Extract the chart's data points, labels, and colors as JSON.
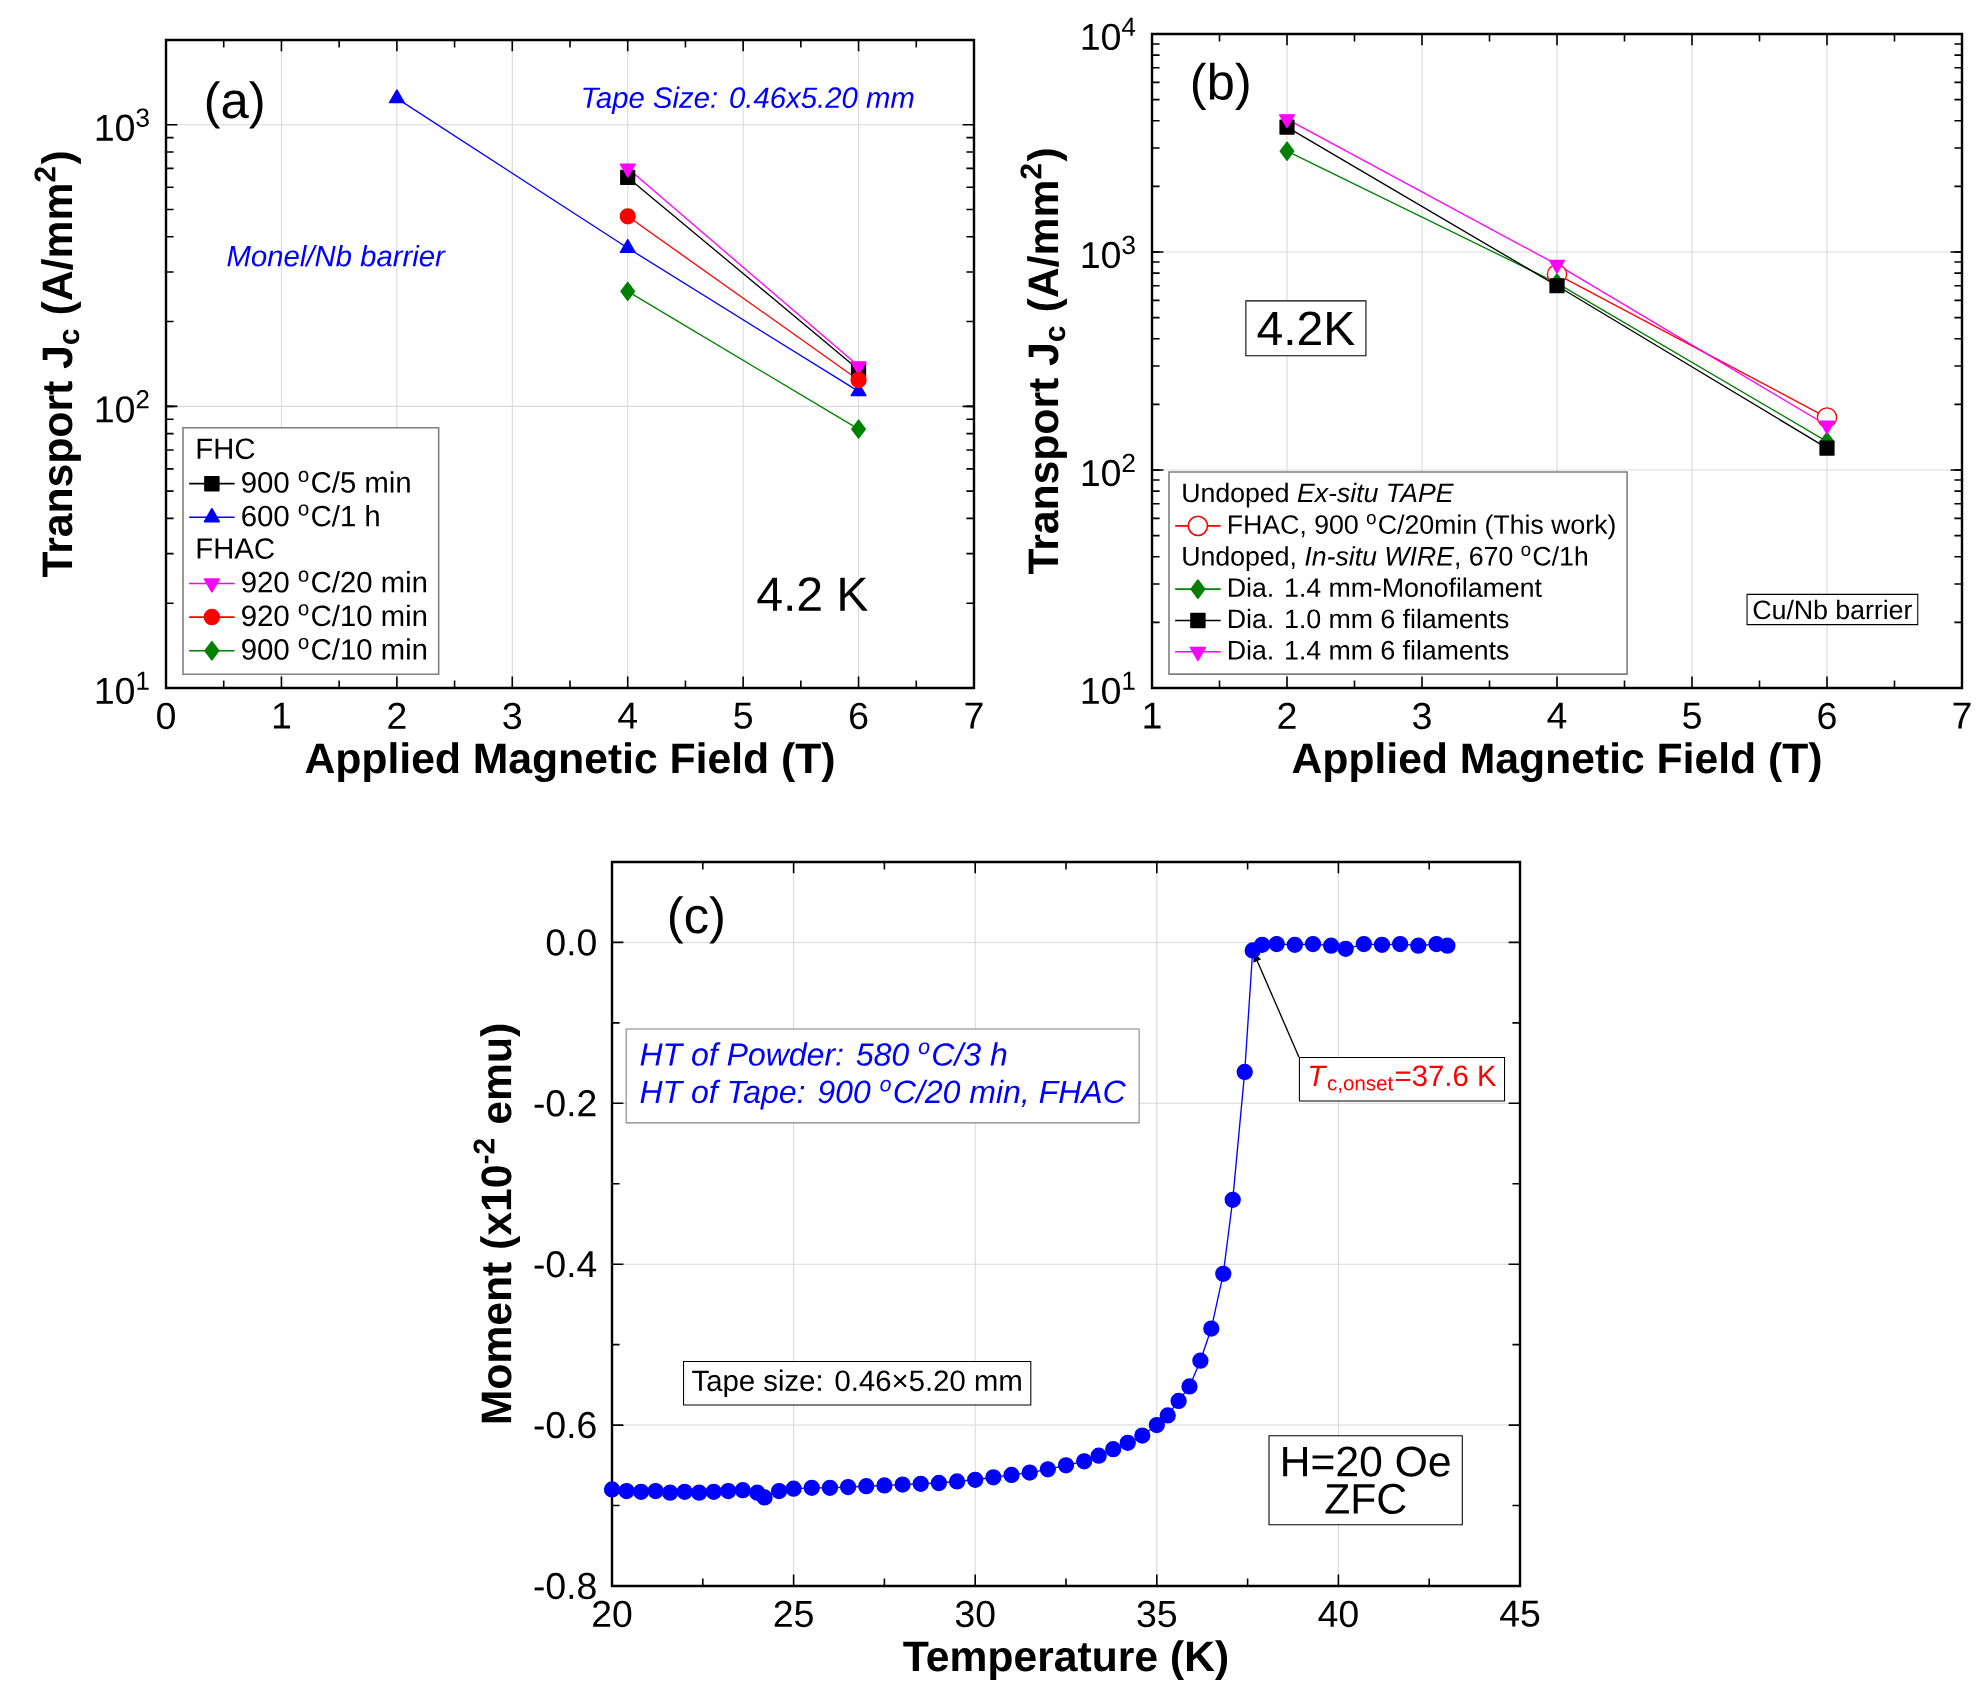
{
  "chart_data": [
    {
      "type": "line",
      "xlabel": "Applied Magnetic Field (T)",
      "ylabel": "Transport J$_{c}$ (A/mm$^{2}$)",
      "log": "y",
      "xlim": [
        0,
        7
      ],
      "ylim": [
        10,
        2000
      ],
      "xticks": [
        0,
        1,
        2,
        3,
        4,
        5,
        6,
        7
      ],
      "yticks": [
        {
          "value": 10,
          "label": "10$^{1}$"
        },
        {
          "value": 100,
          "label": "10$^{2}$"
        },
        {
          "value": 1000,
          "label": "10$^{3}$"
        }
      ],
      "grid": true,
      "legend": "bottom left",
      "annotations": [
        "(a)",
        "Tape Size: 0.46x5.20 mm",
        "Monel/Nb barrier",
        "4.2 K",
        "FHC",
        "FHAC"
      ],
      "series": [
        {
          "name": "900 $^{o}$C/5 min",
          "color": "#000000",
          "marker": "square",
          "x": [
            4,
            6
          ],
          "values": [
            650,
            135
          ]
        },
        {
          "name": "600 $^{o}$C/1 h",
          "color": "#0000ff",
          "marker": "triangle",
          "x": [
            2,
            4,
            6
          ],
          "values": [
            1240,
            365,
            113
          ]
        },
        {
          "name": "920 $^{o}$C/20 min",
          "color": "#ff00ff",
          "marker": "triangle-down",
          "x": [
            4,
            6
          ],
          "values": [
            700,
            139
          ]
        },
        {
          "name": "920 $^{o}$C/10 min",
          "color": "#ff0000",
          "marker": "circle",
          "x": [
            4,
            6
          ],
          "values": [
            473,
            124
          ]
        },
        {
          "name": "900 $^{o}$C/10 min",
          "color": "#008000",
          "marker": "diamond",
          "x": [
            4,
            6
          ],
          "values": [
            256,
            83
          ]
        }
      ]
    },
    {
      "type": "line",
      "xlabel": "Applied Magnetic Field (T)",
      "ylabel": "Transport J$_{c}$ (A/mm$^{2}$)",
      "log": "y",
      "xlim": [
        1,
        7
      ],
      "ylim": [
        10,
        10000
      ],
      "xticks": [
        1,
        2,
        3,
        4,
        5,
        6,
        7
      ],
      "yticks": [
        {
          "value": 10,
          "label": "10$^{1}$"
        },
        {
          "value": 100,
          "label": "10$^{2}$"
        },
        {
          "value": 1000,
          "label": "10$^{3}$"
        },
        {
          "value": 10000,
          "label": "10$^{4}$"
        }
      ],
      "grid": true,
      "legend": "bottom left",
      "annotations": [
        "(b)",
        "4.2K",
        "Cu/Nb barrier",
        "Undoped *Ex-situ TAPE*",
        "Undoped, *In-situ WIRE*, 670 $^{o}$C/1h"
      ],
      "series": [
        {
          "name": "FHAC, 900 $^{o}$C/20min (This work)",
          "color": "#ff0000",
          "marker": "open circle",
          "x": [
            4,
            6
          ],
          "values": [
            790,
            174
          ]
        },
        {
          "name": "Dia. 1.4 mm-Monofilament",
          "color": "#008000",
          "marker": "diamond",
          "x": [
            2,
            4,
            6
          ],
          "values": [
            2900,
            720,
            135
          ]
        },
        {
          "name": "Dia. 1.0 mm 6 filaments",
          "color": "#000000",
          "marker": "square",
          "x": [
            2,
            4,
            6
          ],
          "values": [
            3740,
            700,
            126
          ]
        },
        {
          "name": "Dia. 1.4 mm 6 filaments",
          "color": "#ff00ff",
          "marker": "triangle-down",
          "x": [
            2,
            4,
            6
          ],
          "values": [
            4070,
            875,
            160
          ]
        }
      ]
    },
    {
      "type": "line",
      "xlabel": "Temperature (K)",
      "ylabel": "Moment (x10$^{-2}$ emu)",
      "xlim": [
        20,
        45
      ],
      "ylim": [
        -0.8,
        0.1
      ],
      "xticks": [
        20,
        25,
        30,
        35,
        40,
        45
      ],
      "yticks": [
        -0.8,
        -0.6,
        -0.4,
        -0.2,
        {
          "value": 0,
          "label": "0.0"
        }
      ],
      "grid": true,
      "annotations": [
        "(c)",
        "HT of Powder: 580 $^{o}$C/3 h",
        "HT of Tape: 900 $^{o}$C/20 min, FHAC",
        {
          "text": "*T*$_{c,onset}$=37.6 K",
          "x": 37.64,
          "y": -0.01
        },
        "Tape size: 0.46×5.20 mm",
        "H=20 Oe",
        "ZFC"
      ],
      "series": [
        {
          "color": "#0000ff",
          "marker": "circle",
          "x": [
            20,
            20.4,
            20.8,
            21.2,
            21.6,
            22,
            22.4,
            22.8,
            23.2,
            23.6,
            24,
            24.2,
            24.6,
            25,
            25.5,
            26,
            26.5,
            27,
            27.5,
            28,
            28.5,
            29,
            29.5,
            30,
            30.5,
            31,
            31.5,
            32,
            32.5,
            33,
            33.4,
            33.8,
            34.2,
            34.6,
            35,
            35.3,
            35.6,
            35.9,
            36.2,
            36.5,
            36.83,
            37.09,
            37.42,
            37.64,
            37.9,
            38.3,
            38.8,
            39.3,
            39.8,
            40.2,
            40.7,
            41.2,
            41.7,
            42.2,
            42.7,
            43
          ],
          "values": [
            -0.68,
            -0.682,
            -0.683,
            -0.682,
            -0.684,
            -0.683,
            -0.684,
            -0.683,
            -0.682,
            -0.681,
            -0.684,
            -0.69,
            -0.682,
            -0.679,
            -0.678,
            -0.678,
            -0.677,
            -0.676,
            -0.675,
            -0.674,
            -0.673,
            -0.672,
            -0.67,
            -0.668,
            -0.665,
            -0.662,
            -0.659,
            -0.655,
            -0.65,
            -0.645,
            -0.638,
            -0.63,
            -0.622,
            -0.613,
            -0.6,
            -0.588,
            -0.57,
            -0.552,
            -0.52,
            -0.48,
            -0.412,
            -0.32,
            -0.161,
            -0.01,
            -0.003,
            -0.002,
            -0.003,
            -0.002,
            -0.004,
            -0.008,
            -0.002,
            -0.003,
            -0.002,
            -0.004,
            -0.002,
            -0.004
          ]
        }
      ]
    }
  ]
}
